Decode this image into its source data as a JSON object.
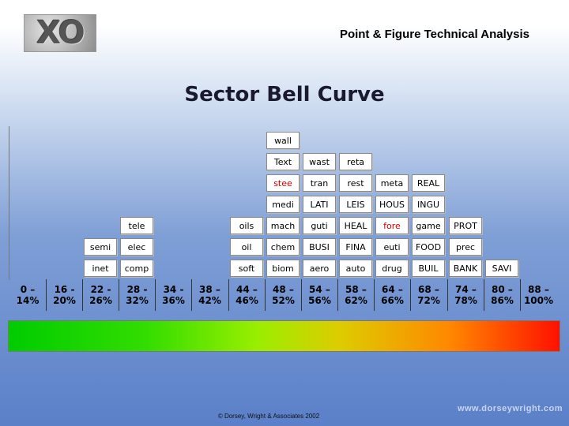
{
  "header": {
    "logo_text": "XO",
    "title": "Point & Figure Technical Analysis"
  },
  "main_title": "Sector Bell Curve",
  "ranges": [
    "0 –|14%",
    "16 -|20%",
    "22 -|26%",
    "28 -|32%",
    "34 -|36%",
    "38 –|42%",
    "44 –|46%",
    "48 –|52%",
    "54 –|56%",
    "58 –|62%",
    "64 –|66%",
    "68 –|72%",
    "74 –|78%",
    "80 –|86%",
    "88 –|100%"
  ],
  "columns": [
    [],
    [],
    [
      "semi",
      "inet"
    ],
    [
      "tele",
      "elec",
      "comp"
    ],
    [],
    [],
    [
      "oils",
      "oil",
      "soft"
    ],
    [
      "wall",
      "Text",
      "stee",
      "medi",
      "mach",
      "chem",
      "biom"
    ],
    [
      "wast",
      "tran",
      "LATI",
      "guti",
      "BUSI",
      "aero"
    ],
    [
      "reta",
      "rest",
      "LEIS",
      "HEAL",
      "FINA",
      "auto"
    ],
    [
      "meta",
      "HOUS",
      "fore",
      "euti",
      "drug"
    ],
    [
      "REAL",
      "INGU",
      "game",
      "FOOD",
      "BUIL"
    ],
    [
      "PROT",
      "prec",
      "BANK"
    ],
    [
      "SAVI"
    ],
    []
  ],
  "highlight_color": "#d40000",
  "highlighted": [
    "stee",
    "fore"
  ],
  "gradient": {
    "from": "#00cc00",
    "mid": "#ddcc00",
    "to": "#ff1100"
  },
  "footer": {
    "copyright": "© Dorsey, Wright & Associates 2002",
    "website": "www.dorseywright.com"
  }
}
